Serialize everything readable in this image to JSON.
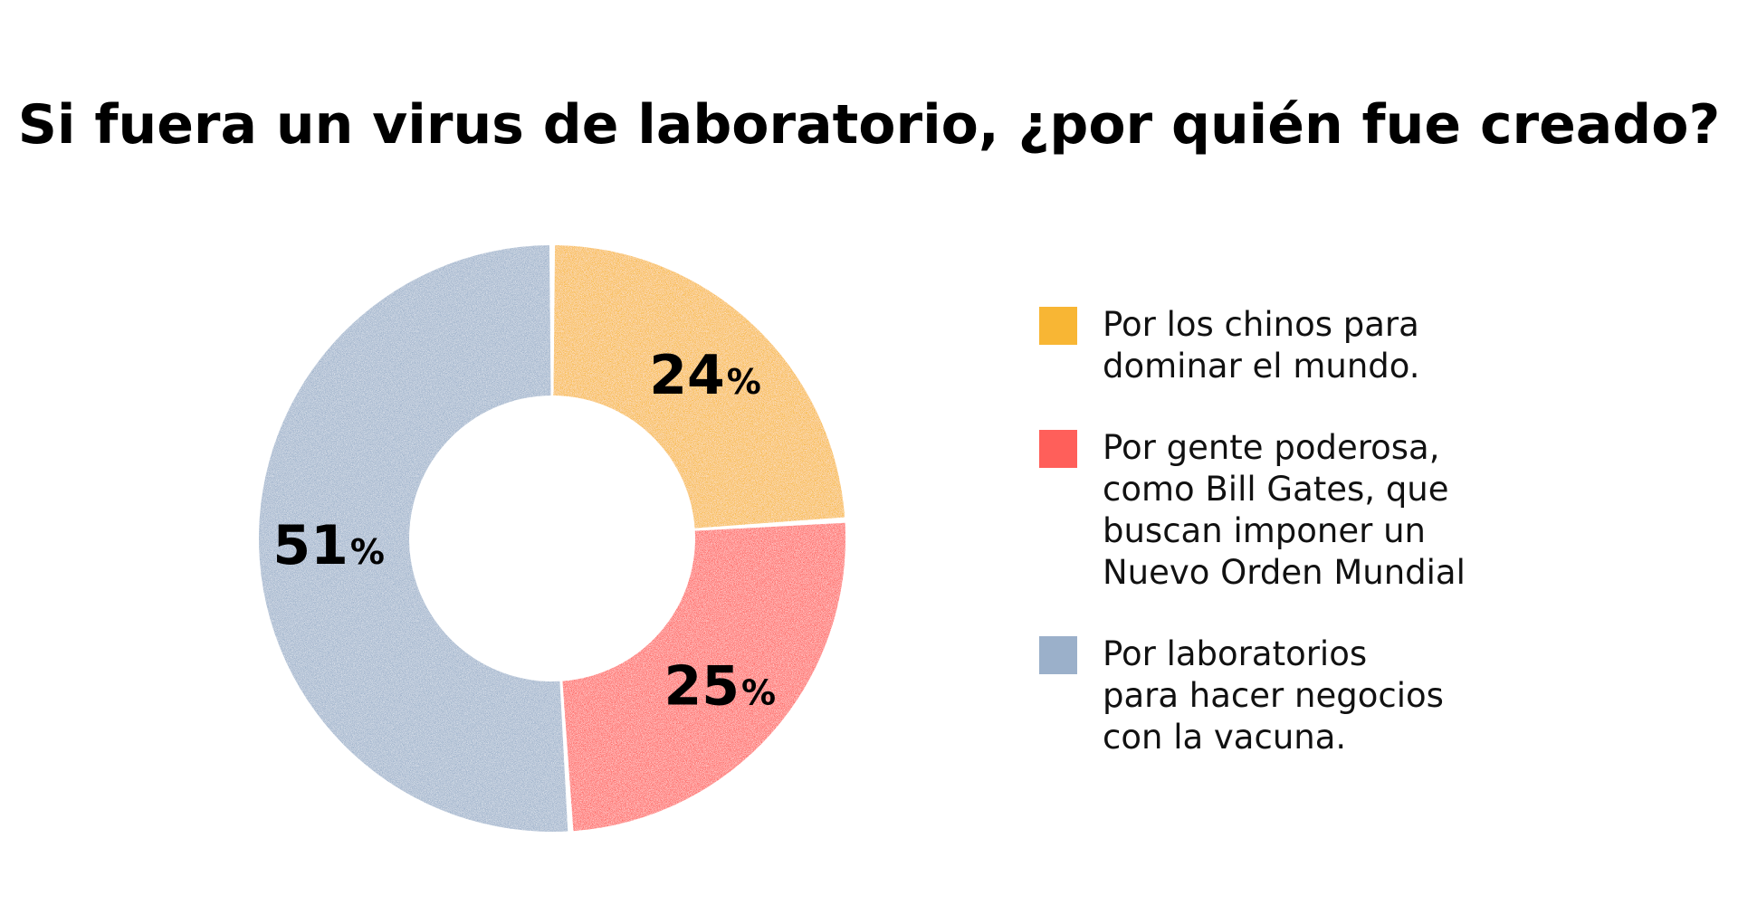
{
  "chart_data": {
    "type": "pie",
    "title": "Si fuera un virus de laboratorio, ¿por quién fue creado?",
    "series": [
      {
        "values": [
          24,
          25,
          51
        ]
      }
    ],
    "slices": [
      {
        "label": "Por los chinos para\ndominar el mundo.",
        "value": 24,
        "number_label": "24",
        "unit_label": "%",
        "color": "#F8B634"
      },
      {
        "label": "Por gente poderosa,\ncomo Bill Gates, que\nbuscan imponer un\nNuevo Orden Mundial",
        "value": 25,
        "number_label": "25",
        "unit_label": "%",
        "color": "#FF5F5A"
      },
      {
        "label": "Por laboratorios\npara hacer negocios\ncon la vacuna.",
        "value": 51,
        "number_label": "51",
        "unit_label": "%",
        "color": "#9BB0CA"
      }
    ],
    "legend_position": "right",
    "donut": true
  }
}
